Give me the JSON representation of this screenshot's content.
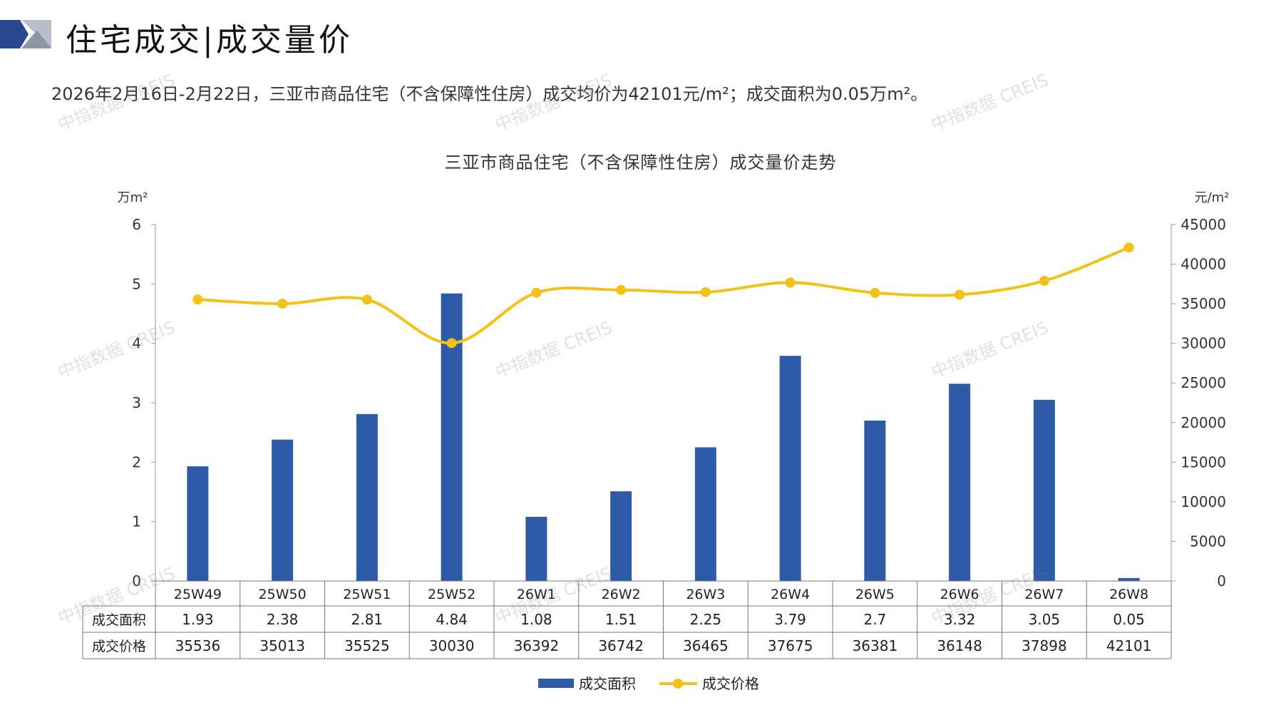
{
  "header": {
    "title": "住宅成交|成交量价",
    "summary": "2026年2月16日-2月22日，三亚市商品住宅（不含保障性住房）成交均价为42101元/m²；成交面积为0.05万m²。"
  },
  "watermark_text": "中指数据 CREIS",
  "colors": {
    "bar": "#2E5BA8",
    "line": "#F2C218",
    "logo_dark": "#2B4790",
    "logo_light": "#B9BECB"
  },
  "chart_data": {
    "type": "bar",
    "title": "三亚市商品住宅（不含保障性住房）成交量价走势",
    "y_left_label": "万m²",
    "y_right_label": "元/m²",
    "ylim_left": [
      0,
      6
    ],
    "ylim_right": [
      0,
      45000
    ],
    "left_ticks": [
      "0",
      "1",
      "2",
      "3",
      "4",
      "5",
      "6"
    ],
    "right_ticks": [
      "0",
      "5000",
      "10000",
      "15000",
      "20000",
      "25000",
      "30000",
      "35000",
      "40000",
      "45000"
    ],
    "categories": [
      "25W49",
      "25W50",
      "25W51",
      "25W52",
      "26W1",
      "26W2",
      "26W3",
      "26W4",
      "26W5",
      "26W6",
      "26W7",
      "26W8"
    ],
    "series": [
      {
        "name": "成交面积",
        "type": "bar",
        "axis": "left",
        "values": [
          1.93,
          2.38,
          2.81,
          4.84,
          1.08,
          1.51,
          2.25,
          3.79,
          2.7,
          3.32,
          3.05,
          0.05
        ],
        "labels": [
          "1.93",
          "2.38",
          "2.81",
          "4.84",
          "1.08",
          "1.51",
          "2.25",
          "3.79",
          "2.7",
          "3.32",
          "3.05",
          "0.05"
        ]
      },
      {
        "name": "成交价格",
        "type": "line",
        "axis": "right",
        "values": [
          35536,
          35013,
          35525,
          30030,
          36392,
          36742,
          36465,
          37675,
          36381,
          36148,
          37898,
          42101
        ],
        "labels": [
          "35536",
          "35013",
          "35525",
          "30030",
          "36392",
          "36742",
          "36465",
          "37675",
          "36381",
          "36148",
          "37898",
          "42101"
        ]
      }
    ],
    "grid": false,
    "legend": "bottom",
    "data_table": true
  }
}
